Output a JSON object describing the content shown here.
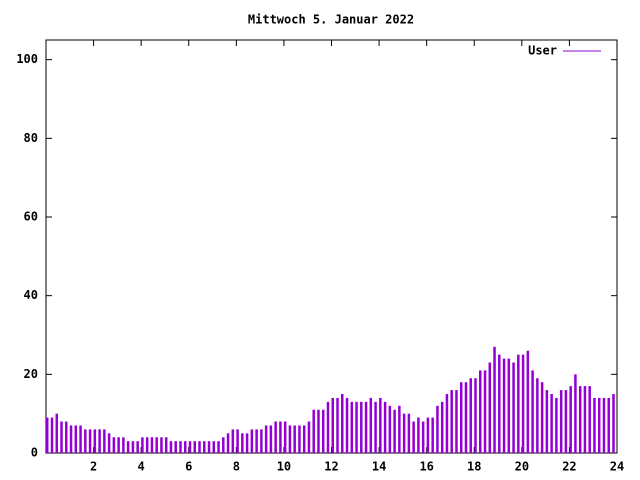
{
  "chart_data": {
    "type": "impulse",
    "title": "Mittwoch 5. Januar 2022",
    "x": [
      0,
      0.2,
      0.4,
      0.6,
      0.8,
      1,
      1.2,
      1.4,
      1.6,
      1.8,
      2,
      2.2,
      2.4,
      2.6,
      2.8,
      3,
      3.2,
      3.4,
      3.6,
      3.8,
      4,
      4.2,
      4.4,
      4.6,
      4.8,
      5,
      5.2,
      5.4,
      5.6,
      5.8,
      6,
      6.2,
      6.4,
      6.6,
      6.8,
      7,
      7.2,
      7.4,
      7.6,
      7.8,
      8,
      8.2,
      8.4,
      8.6,
      8.8,
      9,
      9.2,
      9.4,
      9.6,
      9.8,
      10,
      10.2,
      10.4,
      10.6,
      10.8,
      11,
      11.2,
      11.4,
      11.6,
      11.8,
      12,
      12.2,
      12.4,
      12.6,
      12.8,
      13,
      13.2,
      13.4,
      13.6,
      13.8,
      14,
      14.2,
      14.4,
      14.6,
      14.8,
      15,
      15.2,
      15.4,
      15.6,
      15.8,
      16,
      16.2,
      16.4,
      16.6,
      16.8,
      17,
      17.2,
      17.4,
      17.6,
      17.8,
      18,
      18.2,
      18.4,
      18.6,
      18.8,
      19,
      19.2,
      19.4,
      19.6,
      19.8,
      20,
      20.2,
      20.4,
      20.6,
      20.8,
      21,
      21.2,
      21.4,
      21.6,
      21.8,
      22,
      22.2,
      22.4,
      22.6,
      22.8,
      23,
      23.2,
      23.4,
      23.6,
      23.8
    ],
    "series": [
      {
        "name": "User",
        "color": "#9400d3",
        "values": [
          9,
          9,
          10,
          8,
          8,
          7,
          7,
          7,
          6,
          6,
          6,
          6,
          6,
          5,
          4,
          4,
          4,
          3,
          3,
          3,
          4,
          4,
          4,
          4,
          4,
          4,
          3,
          3,
          3,
          3,
          3,
          3,
          3,
          3,
          3,
          3,
          3,
          4,
          5,
          6,
          6,
          5,
          5,
          6,
          6,
          6,
          7,
          7,
          8,
          8,
          8,
          7,
          7,
          7,
          7,
          8,
          11,
          11,
          11,
          13,
          14,
          14,
          15,
          14,
          13,
          13,
          13,
          13,
          14,
          13,
          14,
          13,
          12,
          11,
          12,
          10,
          10,
          8,
          9,
          8,
          9,
          9,
          12,
          13,
          15,
          16,
          16,
          18,
          18,
          19,
          19,
          21,
          21,
          23,
          27,
          25,
          24,
          24,
          23,
          25,
          25,
          26,
          21,
          19,
          18,
          16,
          15,
          14,
          16,
          16,
          17,
          20,
          17,
          17,
          17,
          14,
          14,
          14,
          14,
          15
        ]
      }
    ],
    "xlim": [
      0,
      24
    ],
    "xticks": [
      2,
      4,
      6,
      8,
      10,
      12,
      14,
      16,
      18,
      20,
      22,
      24
    ],
    "ylim": [
      0,
      105
    ],
    "yticks": [
      0,
      20,
      40,
      60,
      80,
      100
    ],
    "legend": "top-right"
  }
}
